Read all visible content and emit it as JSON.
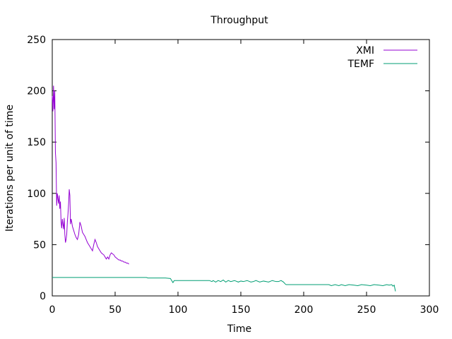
{
  "chart_data": {
    "type": "line",
    "title": "Throughput",
    "xlabel": "Time",
    "ylabel": "Iterations per unit of time",
    "xlim": [
      0,
      300
    ],
    "ylim": [
      0,
      250
    ],
    "xticks": [
      0,
      50,
      100,
      150,
      200,
      250,
      300
    ],
    "yticks": [
      0,
      50,
      100,
      150,
      200,
      250
    ],
    "grid": false,
    "legend_position": "top-right",
    "series": [
      {
        "name": "XMI",
        "color": "#9400d3",
        "x": [
          0,
          0.5,
          1,
          1.5,
          2,
          2.5,
          3,
          3.5,
          4,
          4.5,
          5,
          5.5,
          6,
          6.5,
          7,
          7.5,
          8,
          8.5,
          9,
          9.5,
          10,
          10.5,
          11,
          11.5,
          12,
          12.5,
          13,
          13.5,
          14,
          14.5,
          15,
          15.5,
          16,
          17,
          18,
          19,
          20,
          21,
          22,
          23,
          24,
          25,
          26,
          27,
          28,
          29,
          30,
          31,
          32,
          33,
          34,
          35,
          36,
          37,
          38,
          39,
          40,
          41,
          42,
          43,
          44,
          45,
          46,
          47,
          48,
          49,
          50,
          51,
          52,
          53,
          54,
          55,
          56,
          57,
          58,
          59,
          60,
          61
        ],
        "y": [
          195,
          180,
          205,
          182,
          200,
          140,
          130,
          88,
          100,
          95,
          90,
          98,
          85,
          92,
          72,
          66,
          75,
          70,
          65,
          76,
          60,
          52,
          55,
          60,
          72,
          80,
          90,
          104,
          98,
          70,
          75,
          72,
          68,
          64,
          60,
          57,
          55,
          60,
          72,
          68,
          62,
          60,
          58,
          55,
          52,
          50,
          48,
          46,
          44,
          50,
          55,
          52,
          48,
          46,
          44,
          42,
          41,
          40,
          38,
          36,
          38,
          36,
          40,
          42,
          41,
          40,
          38,
          37,
          36,
          35,
          35,
          34,
          34,
          33,
          33,
          32,
          32,
          31
        ]
      },
      {
        "name": "TEMF",
        "color": "#009e73",
        "x": [
          0,
          20,
          40,
          60,
          75,
          76,
          90,
          94,
          95,
          96,
          97,
          110,
          125,
          127,
          128,
          130,
          132,
          134,
          136,
          138,
          140,
          142,
          145,
          148,
          150,
          152,
          155,
          158,
          160,
          162,
          165,
          168,
          170,
          172,
          175,
          178,
          180,
          182,
          184,
          185,
          186,
          190,
          200,
          210,
          220,
          222,
          225,
          228,
          230,
          233,
          236,
          240,
          243,
          246,
          250,
          253,
          256,
          260,
          263,
          266,
          268,
          270,
          271,
          272,
          273
        ],
        "y": [
          18,
          18,
          18,
          18,
          18,
          17.5,
          17.5,
          17,
          15,
          13,
          15,
          15,
          15,
          14,
          15,
          13.5,
          15,
          14,
          15.5,
          13.5,
          15,
          14,
          15,
          13.5,
          14.5,
          14,
          15,
          13.5,
          14,
          15,
          13.5,
          14.5,
          14,
          13.5,
          15,
          14,
          14,
          15,
          13.5,
          12,
          11,
          11,
          11,
          11,
          11,
          10,
          11,
          10,
          11,
          10,
          11,
          10.5,
          10,
          11,
          10.5,
          10,
          11,
          10.5,
          10,
          11,
          10.5,
          11,
          9.5,
          10.5,
          4.5
        ]
      }
    ]
  }
}
